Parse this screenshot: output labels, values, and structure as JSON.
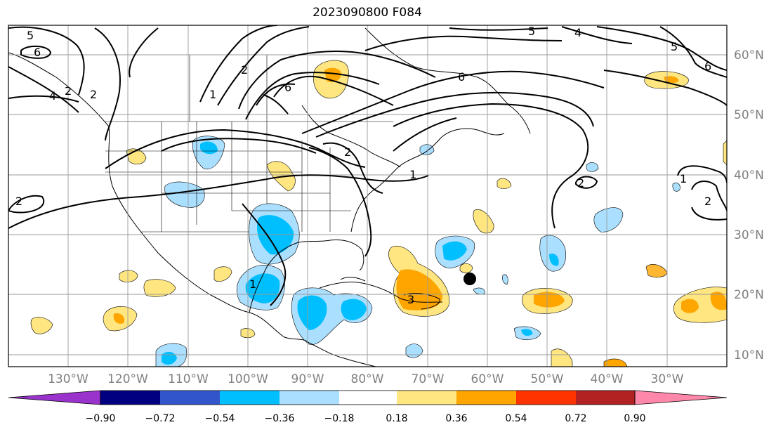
{
  "title": "2023090800 F084",
  "map": {
    "lon_range": [
      -140,
      -20
    ],
    "lat_range": [
      8,
      65
    ],
    "lat_ticks": [
      "60°N",
      "50°N",
      "40°N",
      "30°N",
      "20°N",
      "10°N"
    ],
    "lon_ticks": [
      "130°W",
      "120°W",
      "110°W",
      "100°W",
      "90°W",
      "80°W",
      "70°W",
      "60°W",
      "50°W",
      "40°W",
      "30°W"
    ],
    "grid": true,
    "contour_labels": [
      "5",
      "6",
      "4",
      "2",
      "1",
      "2",
      "6",
      "2",
      "5",
      "4",
      "5",
      "6",
      "6",
      "2",
      "1",
      "2",
      "2",
      "1",
      "2",
      "1",
      "3"
    ],
    "marker": "black-dot"
  },
  "colorbar": {
    "tick_labels": [
      "−0.90",
      "−0.72",
      "−0.54",
      "−0.36",
      "−0.18",
      "0.18",
      "0.36",
      "0.54",
      "0.72",
      "0.90"
    ],
    "colors": [
      "#9933cc",
      "#000080",
      "#3355cc",
      "#00bfff",
      "#aadfff",
      "#ffffff",
      "#ffe680",
      "#ffa500",
      "#ff3300",
      "#b22222",
      "#ff88aa"
    ]
  }
}
